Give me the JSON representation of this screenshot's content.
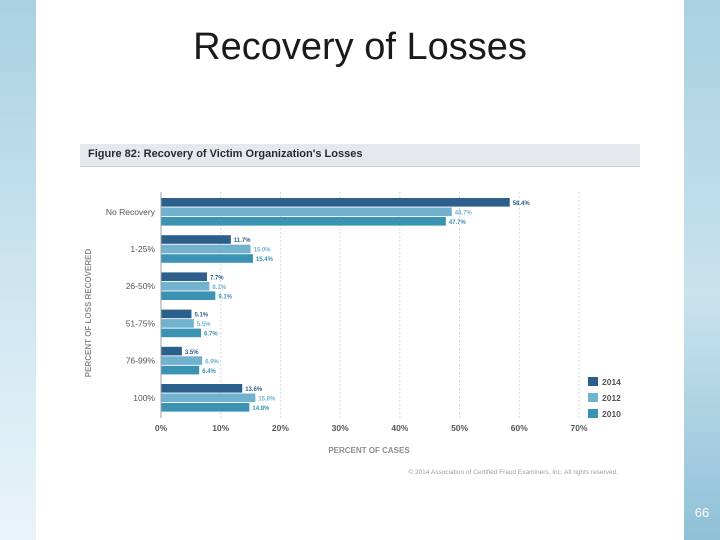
{
  "slide": {
    "title": "Recovery of Losses",
    "page_number": "66"
  },
  "colors": {
    "series_2014": "#2d5f8c",
    "series_2012": "#72b2cf",
    "series_2010": "#3a93b3",
    "grid": "#d3d7da",
    "label_text": "#555555",
    "axis_title": "#8a8f93"
  },
  "chart_data": {
    "type": "bar",
    "orientation": "horizontal",
    "title": "Figure 82: Recovery of Victim Organization's Losses",
    "xlabel": "PERCENT OF CASES",
    "ylabel": "PERCENT OF LOSS RECOVERED",
    "xlim": [
      0,
      70
    ],
    "x_ticks": [
      "0%",
      "10%",
      "20%",
      "30%",
      "40%",
      "50%",
      "60%",
      "70%"
    ],
    "grid": true,
    "legend_position": "bottom-right",
    "categories": [
      "No Recovery",
      "1-25%",
      "26-50%",
      "51-75%",
      "76-99%",
      "100%"
    ],
    "series": [
      {
        "name": "2014",
        "values": [
          58.4,
          11.7,
          7.7,
          5.1,
          3.5,
          13.6
        ],
        "labels": [
          "58.4%",
          "11.7%",
          "7.7%",
          "5.1%",
          "3.5%",
          "13.6%"
        ]
      },
      {
        "name": "2012",
        "values": [
          48.7,
          15.0,
          8.1,
          5.5,
          6.9,
          15.8
        ],
        "labels": [
          "48.7%",
          "15.0%",
          "8.1%",
          "5.5%",
          "6.9%",
          "15.8%"
        ]
      },
      {
        "name": "2010",
        "values": [
          47.7,
          15.4,
          9.1,
          6.7,
          6.4,
          14.8
        ],
        "labels": [
          "47.7%",
          "15.4%",
          "9.1%",
          "6.7%",
          "6.4%",
          "14.8%"
        ]
      }
    ],
    "copyright": "© 2014 Association of Certified Fraud Examiners, Inc. All rights reserved."
  }
}
